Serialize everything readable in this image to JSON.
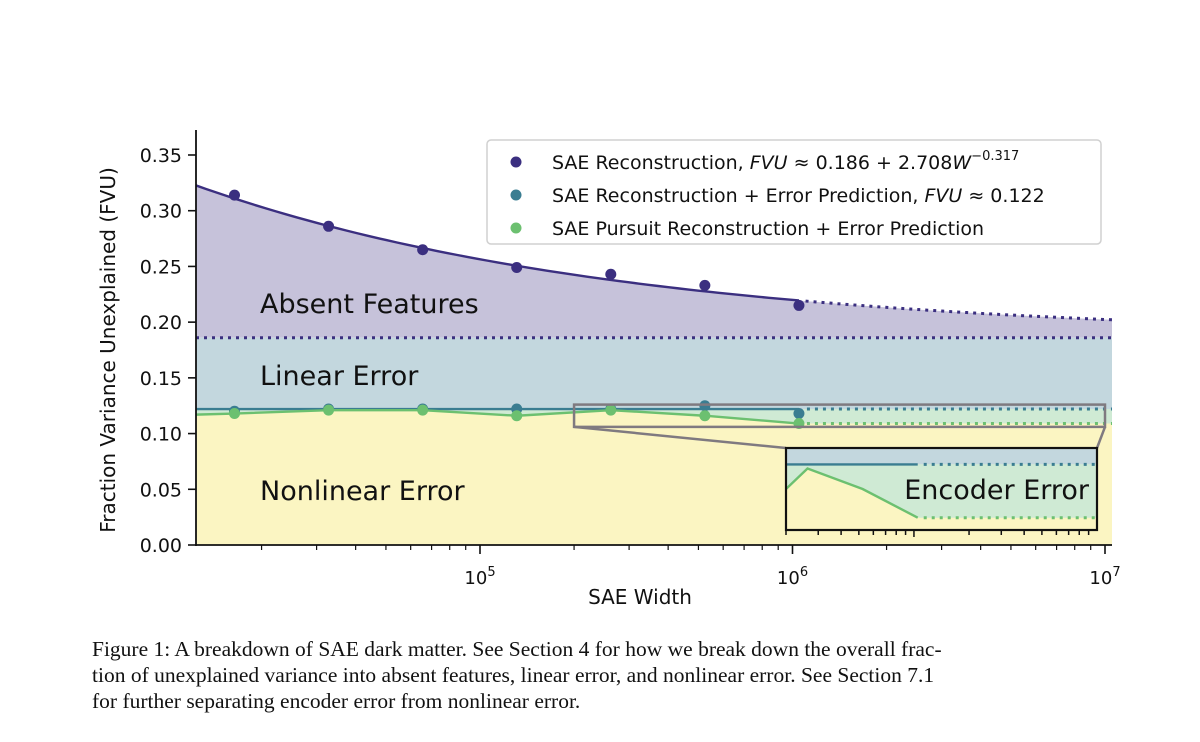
{
  "chart_data": {
    "type": "line",
    "title": "",
    "xlabel": "SAE Width",
    "ylabel": "Fraction Variance Unexplained (FVU)",
    "xscale": "log",
    "xlim": [
      11000,
      11500000
    ],
    "ylim": [
      0.0,
      0.37
    ],
    "xticks": [
      {
        "value": 100000,
        "base": "10",
        "exp": "5"
      },
      {
        "value": 1000000,
        "base": "10",
        "exp": "6"
      },
      {
        "value": 10000000,
        "base": "10",
        "exp": "7"
      }
    ],
    "yticks": [
      "0.00",
      "0.05",
      "0.10",
      "0.15",
      "0.20",
      "0.25",
      "0.30",
      "0.35"
    ],
    "ytick_values": [
      0.0,
      0.05,
      0.1,
      0.15,
      0.2,
      0.25,
      0.3,
      0.35
    ],
    "x": [
      16384,
      32768,
      65536,
      131072,
      262144,
      524288,
      1048576
    ],
    "series": [
      {
        "name": "SAE Reconstruction, FVU ≈ 0.186 + 2.708W^−0.317",
        "legend_prefix": "SAE Reconstruction, ",
        "legend_math": "FVU",
        "legend_formula": " ≈ 0.186 + 2.708",
        "legend_var": "W",
        "legend_exp": "−0.317",
        "color": "#3b2f80",
        "values": [
          0.314,
          0.286,
          0.265,
          0.249,
          0.243,
          0.233,
          0.215
        ],
        "fit": {
          "a": 0.186,
          "b": 2.708,
          "c": -0.317
        }
      },
      {
        "name": "SAE Reconstruction + Error Prediction, FVU ≈ 0.122",
        "legend_prefix": "SAE Reconstruction + Error Prediction, ",
        "legend_math": "FVU",
        "legend_formula": " ≈ 0.122",
        "color": "#3a7d91",
        "values": [
          0.12,
          0.122,
          0.122,
          0.122,
          0.122,
          0.125,
          0.118
        ],
        "fit_constant": 0.122
      },
      {
        "name": "SAE Pursuit Reconstruction + Error Prediction",
        "legend_prefix": "SAE Pursuit Reconstruction + Error Prediction",
        "color": "#6cc070",
        "values": [
          0.118,
          0.121,
          0.121,
          0.116,
          0.121,
          0.116,
          0.109
        ],
        "extrapolated_constant": 0.109
      }
    ],
    "horizontal_lines": [
      {
        "y": 0.186,
        "style": "dotted",
        "color": "#3b2f80"
      }
    ],
    "regions": [
      {
        "label": "Absent Features",
        "color": "#c6c2da"
      },
      {
        "label": "Linear Error",
        "color": "#c3d7de"
      },
      {
        "label": "Nonlinear Error",
        "color": "#fbf5c2"
      },
      {
        "label": "Encoder Error",
        "color": "#cfead4"
      }
    ],
    "inset": {
      "label": "Encoder Error",
      "zoomed_x_range": [
        200000,
        10000000
      ],
      "zoomed_y_range": [
        0.106,
        0.126
      ]
    },
    "legend_position": "upper right",
    "grid": false
  },
  "caption": {
    "lines": [
      "Figure 1: A breakdown of SAE dark matter. See Section 4 for how we break down the overall frac-",
      "tion of unexplained variance into absent features, linear error, and nonlinear error. See Section 7.1",
      "for further separating encoder error from nonlinear error."
    ]
  }
}
